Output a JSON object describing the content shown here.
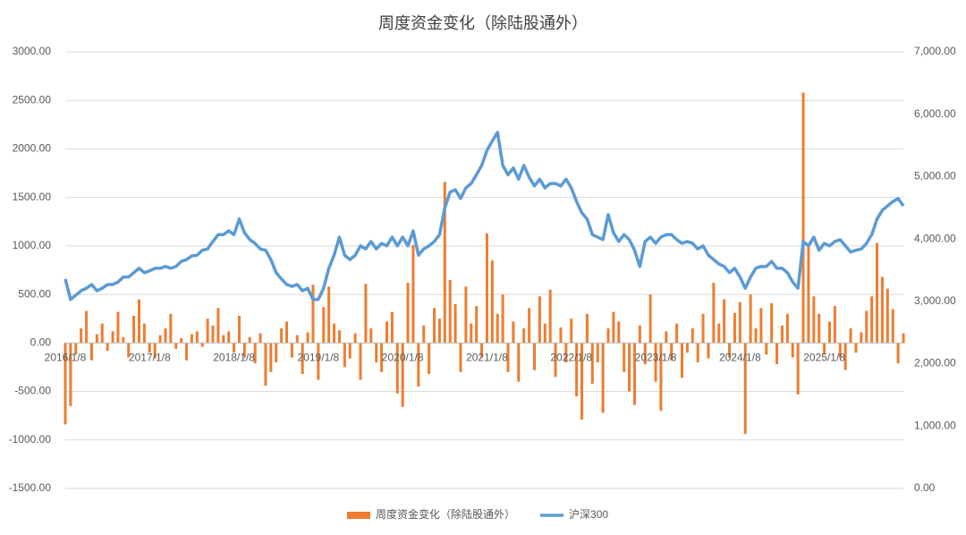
{
  "chart_data": {
    "type": "bar",
    "title": "周度资金变化（除陆股通外）",
    "categories": [
      "2016/1/8",
      null,
      null,
      null,
      null,
      null,
      null,
      null,
      null,
      null,
      null,
      null,
      null,
      null,
      null,
      null,
      "2017/1/8",
      null,
      null,
      null,
      null,
      null,
      null,
      null,
      null,
      null,
      null,
      null,
      null,
      null,
      null,
      null,
      "2018/1/8",
      null,
      null,
      null,
      null,
      null,
      null,
      null,
      null,
      null,
      null,
      null,
      null,
      null,
      null,
      null,
      "2019/1/8",
      null,
      null,
      null,
      null,
      null,
      null,
      null,
      null,
      null,
      null,
      null,
      null,
      null,
      null,
      null,
      "2020/1/8",
      null,
      null,
      null,
      null,
      null,
      null,
      null,
      null,
      null,
      null,
      null,
      null,
      null,
      null,
      null,
      "2021/1/8",
      null,
      null,
      null,
      null,
      null,
      null,
      null,
      null,
      null,
      null,
      null,
      null,
      null,
      null,
      null,
      "2022/1/8",
      null,
      null,
      null,
      null,
      null,
      null,
      null,
      null,
      null,
      null,
      null,
      null,
      null,
      null,
      null,
      "2023/1/8",
      null,
      null,
      null,
      null,
      null,
      null,
      null,
      null,
      null,
      null,
      null,
      null,
      null,
      null,
      null,
      "2024/1/8",
      null,
      null,
      null,
      null,
      null,
      null,
      null,
      null,
      null,
      null,
      null,
      null,
      null,
      null,
      null,
      "2025/1/8",
      null,
      null,
      null,
      null,
      null,
      null,
      null,
      null,
      null,
      null,
      null,
      null,
      null,
      null,
      null
    ],
    "series": [
      {
        "name": "周度资金变化（除陆股通外）",
        "type": "bar",
        "axis": "y",
        "color": "#ED7D31",
        "values": [
          -840,
          -650,
          -120,
          150,
          330,
          -180,
          90,
          200,
          -80,
          120,
          320,
          60,
          -150,
          280,
          450,
          200,
          -100,
          -160,
          80,
          150,
          300,
          -60,
          50,
          -180,
          90,
          120,
          -40,
          250,
          180,
          360,
          80,
          120,
          -100,
          280,
          -150,
          60,
          -210,
          100,
          -440,
          -300,
          -200,
          150,
          220,
          -150,
          80,
          -320,
          110,
          600,
          -380,
          370,
          580,
          200,
          130,
          -250,
          -160,
          100,
          -380,
          610,
          150,
          -200,
          -300,
          220,
          320,
          -520,
          -660,
          620,
          1010,
          -450,
          180,
          -320,
          360,
          250,
          1660,
          650,
          400,
          -300,
          580,
          200,
          380,
          -150,
          1130,
          850,
          300,
          500,
          -300,
          220,
          -400,
          150,
          360,
          -280,
          480,
          200,
          550,
          -350,
          160,
          -200,
          250,
          -550,
          -790,
          300,
          -420,
          -200,
          -720,
          150,
          320,
          220,
          -300,
          -500,
          -640,
          180,
          -220,
          500,
          -400,
          -700,
          120,
          -180,
          200,
          -360,
          -100,
          150,
          -200,
          300,
          -160,
          620,
          200,
          450,
          -150,
          310,
          420,
          -940,
          500,
          150,
          360,
          -120,
          410,
          -220,
          180,
          300,
          -150,
          -530,
          2580,
          1000,
          480,
          300,
          -120,
          220,
          380,
          -150,
          -280,
          150,
          -100,
          110,
          330,
          480,
          1030,
          680,
          560,
          350,
          -210,
          100
        ]
      },
      {
        "name": "沪深300",
        "type": "line",
        "axis": "y2",
        "color": "#5B9BD5",
        "values": [
          3360,
          3030,
          3100,
          3170,
          3210,
          3270,
          3170,
          3210,
          3270,
          3270,
          3310,
          3390,
          3390,
          3460,
          3530,
          3460,
          3490,
          3530,
          3530,
          3560,
          3530,
          3560,
          3640,
          3670,
          3730,
          3740,
          3820,
          3840,
          3960,
          4070,
          4070,
          4130,
          4070,
          4320,
          4100,
          3990,
          3930,
          3840,
          3820,
          3670,
          3460,
          3360,
          3270,
          3240,
          3270,
          3170,
          3210,
          3030,
          3030,
          3210,
          3530,
          3740,
          4030,
          3740,
          3670,
          3740,
          3890,
          3840,
          3960,
          3840,
          3930,
          3890,
          4030,
          3890,
          4030,
          3890,
          4130,
          3740,
          3840,
          3890,
          3960,
          4070,
          4500,
          4750,
          4790,
          4650,
          4820,
          4890,
          5030,
          5180,
          5420,
          5570,
          5710,
          5180,
          5030,
          5140,
          4960,
          5180,
          4990,
          4850,
          4960,
          4820,
          4890,
          4890,
          4850,
          4960,
          4820,
          4600,
          4420,
          4320,
          4070,
          4030,
          3990,
          4390,
          4100,
          3960,
          4070,
          3990,
          3820,
          3560,
          3960,
          4030,
          3930,
          4030,
          4070,
          4070,
          3990,
          3930,
          3960,
          3930,
          3840,
          3890,
          3740,
          3670,
          3600,
          3560,
          3460,
          3530,
          3390,
          3210,
          3390,
          3530,
          3560,
          3560,
          3640,
          3530,
          3530,
          3460,
          3310,
          3210,
          3960,
          3890,
          4030,
          3820,
          3930,
          3890,
          3960,
          3990,
          3890,
          3790,
          3820,
          3840,
          3930,
          4070,
          4320,
          4460,
          4530,
          4600,
          4650,
          4530
        ]
      }
    ],
    "ylim": [
      -1500,
      3000
    ],
    "yticks": [
      {
        "value": -1500,
        "label": "-1500.00"
      },
      {
        "value": -1000,
        "label": "-1000.00"
      },
      {
        "value": -500,
        "label": "-500.00"
      },
      {
        "value": 0,
        "label": "0.00"
      },
      {
        "value": 500,
        "label": "500.00"
      },
      {
        "value": 1000,
        "label": "1000.00"
      },
      {
        "value": 1500,
        "label": "1500.00"
      },
      {
        "value": 2000,
        "label": "2000.00"
      },
      {
        "value": 2500,
        "label": "2500.00"
      },
      {
        "value": 3000,
        "label": "3000.00"
      }
    ],
    "y2lim": [
      0,
      7000
    ],
    "y2ticks": [
      {
        "value": 0,
        "label": "0.00"
      },
      {
        "value": 1000,
        "label": "1,000.00"
      },
      {
        "value": 2000,
        "label": "2,000.00"
      },
      {
        "value": 3000,
        "label": "3,000.00"
      },
      {
        "value": 4000,
        "label": "4,000.00"
      },
      {
        "value": 5000,
        "label": "5,000.00"
      },
      {
        "value": 6000,
        "label": "6,000.00"
      },
      {
        "value": 7000,
        "label": "7,000.00"
      }
    ],
    "grid": true,
    "legend": "bottom"
  }
}
